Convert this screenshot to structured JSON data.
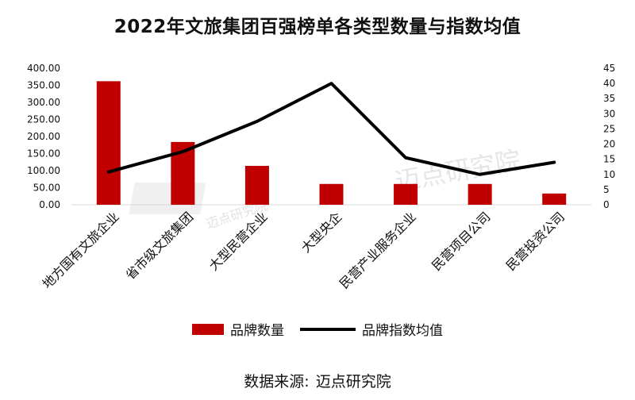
{
  "chart_data": {
    "type": "bar",
    "title": "2022年文旅集团百强榜单各类型数量与指数均值",
    "categories": [
      "地方国有文旅企业",
      "省市级文旅集团",
      "大型民营企业",
      "大型央企",
      "民营产业服务企业",
      "民营项目公司",
      "民营投资公司"
    ],
    "series": [
      {
        "name": "品牌数量",
        "type": "bar",
        "axis": "left",
        "color": "#c00000",
        "values": [
          362,
          184,
          114,
          61,
          61,
          61,
          33
        ]
      },
      {
        "name": "品牌指数均值",
        "type": "line",
        "axis": "right",
        "color": "#000000",
        "values": [
          10.8,
          17.5,
          27.5,
          40,
          15.5,
          10,
          14
        ]
      }
    ],
    "y_left": {
      "min": 0,
      "max": 400,
      "step": 50,
      "ticks": [
        "0.00",
        "50.00",
        "100.00",
        "150.00",
        "200.00",
        "250.00",
        "300.00",
        "350.00",
        "400.00"
      ]
    },
    "y_right": {
      "min": 0,
      "max": 45,
      "step": 5,
      "ticks": [
        "0",
        "5",
        "10",
        "15",
        "20",
        "25",
        "30",
        "35",
        "40",
        "45"
      ]
    },
    "grid": false,
    "legend_position": "bottom"
  },
  "source": {
    "label": "数据来源:",
    "value": "迈点研究院"
  },
  "watermark": {
    "text": "迈点研究院"
  }
}
